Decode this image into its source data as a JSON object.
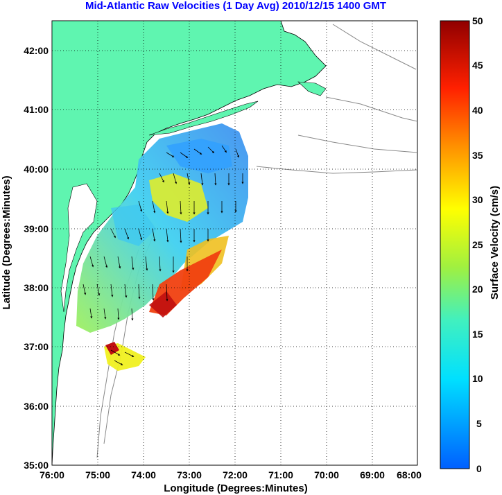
{
  "title": "Mid-Atlantic Raw Velocities (1 Day Avg) 2010/12/15 1400 GMT",
  "map": {
    "xlabel": "Longitude (Degrees:Minutes)",
    "ylabel": "Latitude (Degrees:Minutes)",
    "x_ticks": [
      "76:00",
      "75:00",
      "74:00",
      "73:00",
      "72:00",
      "71:00",
      "70:00",
      "69:00",
      "68:00"
    ],
    "y_ticks": [
      "42:00",
      "41:00",
      "40:00",
      "39:00",
      "38:00",
      "37:00",
      "36:00",
      "35:00"
    ],
    "land_color": "#5ff5b0",
    "grid": "dotted"
  },
  "colorbar": {
    "label": "Surface Velocity (cm/s)",
    "ticks": [
      "50",
      "45",
      "40",
      "35",
      "30",
      "25",
      "20",
      "15",
      "10",
      "5",
      "0"
    ],
    "range": [
      0,
      50
    ]
  }
}
